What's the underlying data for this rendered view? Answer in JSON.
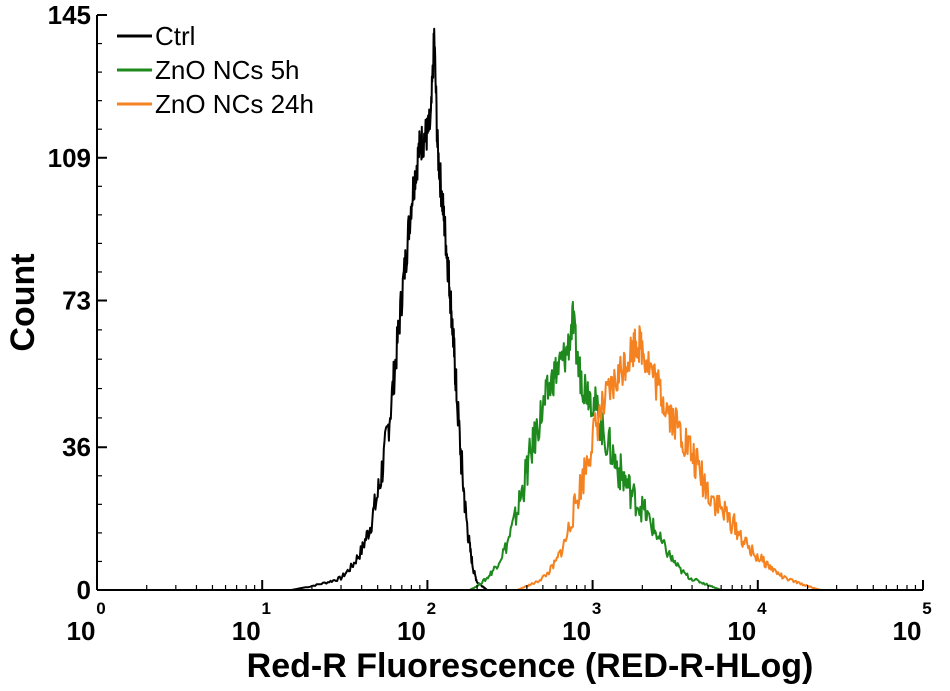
{
  "chart_data": {
    "type": "line",
    "title": "",
    "xlabel": "Red-R Fluorescence (RED-R-HLog)",
    "ylabel": "Count",
    "x_scale": "log",
    "xlim": [
      1,
      100000
    ],
    "ylim": [
      0,
      145
    ],
    "x_ticks": [
      {
        "base": "10",
        "exp": "0",
        "value": 1
      },
      {
        "base": "10",
        "exp": "1",
        "value": 10
      },
      {
        "base": "10",
        "exp": "2",
        "value": 100
      },
      {
        "base": "10",
        "exp": "3",
        "value": 1000
      },
      {
        "base": "10",
        "exp": "4",
        "value": 10000
      },
      {
        "base": "10",
        "exp": "5",
        "value": 100000
      }
    ],
    "y_ticks": [
      "0",
      "36",
      "73",
      "109",
      "145"
    ],
    "grid": false,
    "legend_position": "top-left",
    "series": [
      {
        "name": "Ctrl",
        "color": "#000000",
        "x": [
          15,
          20,
          25,
          30,
          35,
          40,
          45,
          50,
          55,
          60,
          65,
          70,
          75,
          80,
          85,
          90,
          95,
          100,
          105,
          110,
          115,
          120,
          125,
          130,
          135,
          140,
          145,
          150,
          160,
          170,
          180,
          190,
          200,
          215,
          230,
          250
        ],
        "y": [
          0,
          1,
          2,
          3,
          6,
          10,
          16,
          24,
          34,
          46,
          60,
          74,
          86,
          98,
          106,
          112,
          114,
          115,
          118,
          140,
          112,
          103,
          95,
          87,
          79,
          70,
          60,
          50,
          33,
          20,
          11,
          5,
          2,
          1,
          0,
          0
        ]
      },
      {
        "name": "ZnO NCs 5h",
        "color": "#1e8a1e",
        "x": [
          180,
          200,
          230,
          260,
          300,
          340,
          380,
          420,
          470,
          520,
          580,
          640,
          700,
          760,
          820,
          880,
          950,
          1050,
          1150,
          1300,
          1450,
          1600,
          1800,
          2050,
          2300,
          2600,
          3000,
          3400,
          3900,
          4500,
          5200,
          6000
        ],
        "y": [
          0,
          1,
          3,
          6,
          11,
          18,
          26,
          34,
          42,
          48,
          54,
          57,
          60,
          68,
          56,
          52,
          50,
          46,
          40,
          35,
          30,
          27,
          23,
          20,
          16,
          12,
          8,
          5,
          3,
          2,
          1,
          0
        ]
      },
      {
        "name": "ZnO NCs 24h",
        "color": "#f58220",
        "x": [
          350,
          400,
          460,
          530,
          600,
          680,
          770,
          870,
          980,
          1100,
          1250,
          1400,
          1550,
          1700,
          1850,
          2000,
          2200,
          2450,
          2700,
          3000,
          3400,
          3800,
          4300,
          4900,
          5600,
          6400,
          7300,
          8300,
          9500,
          11000,
          12500,
          14500,
          17000,
          20000,
          24000,
          28000
        ],
        "y": [
          0,
          1,
          2,
          4,
          7,
          12,
          20,
          28,
          37,
          44,
          49,
          53,
          57,
          60,
          63,
          61,
          57,
          52,
          48,
          44,
          40,
          36,
          31,
          26,
          22,
          19,
          16,
          12,
          9,
          7,
          5,
          3,
          2,
          1,
          0,
          0
        ]
      }
    ]
  }
}
